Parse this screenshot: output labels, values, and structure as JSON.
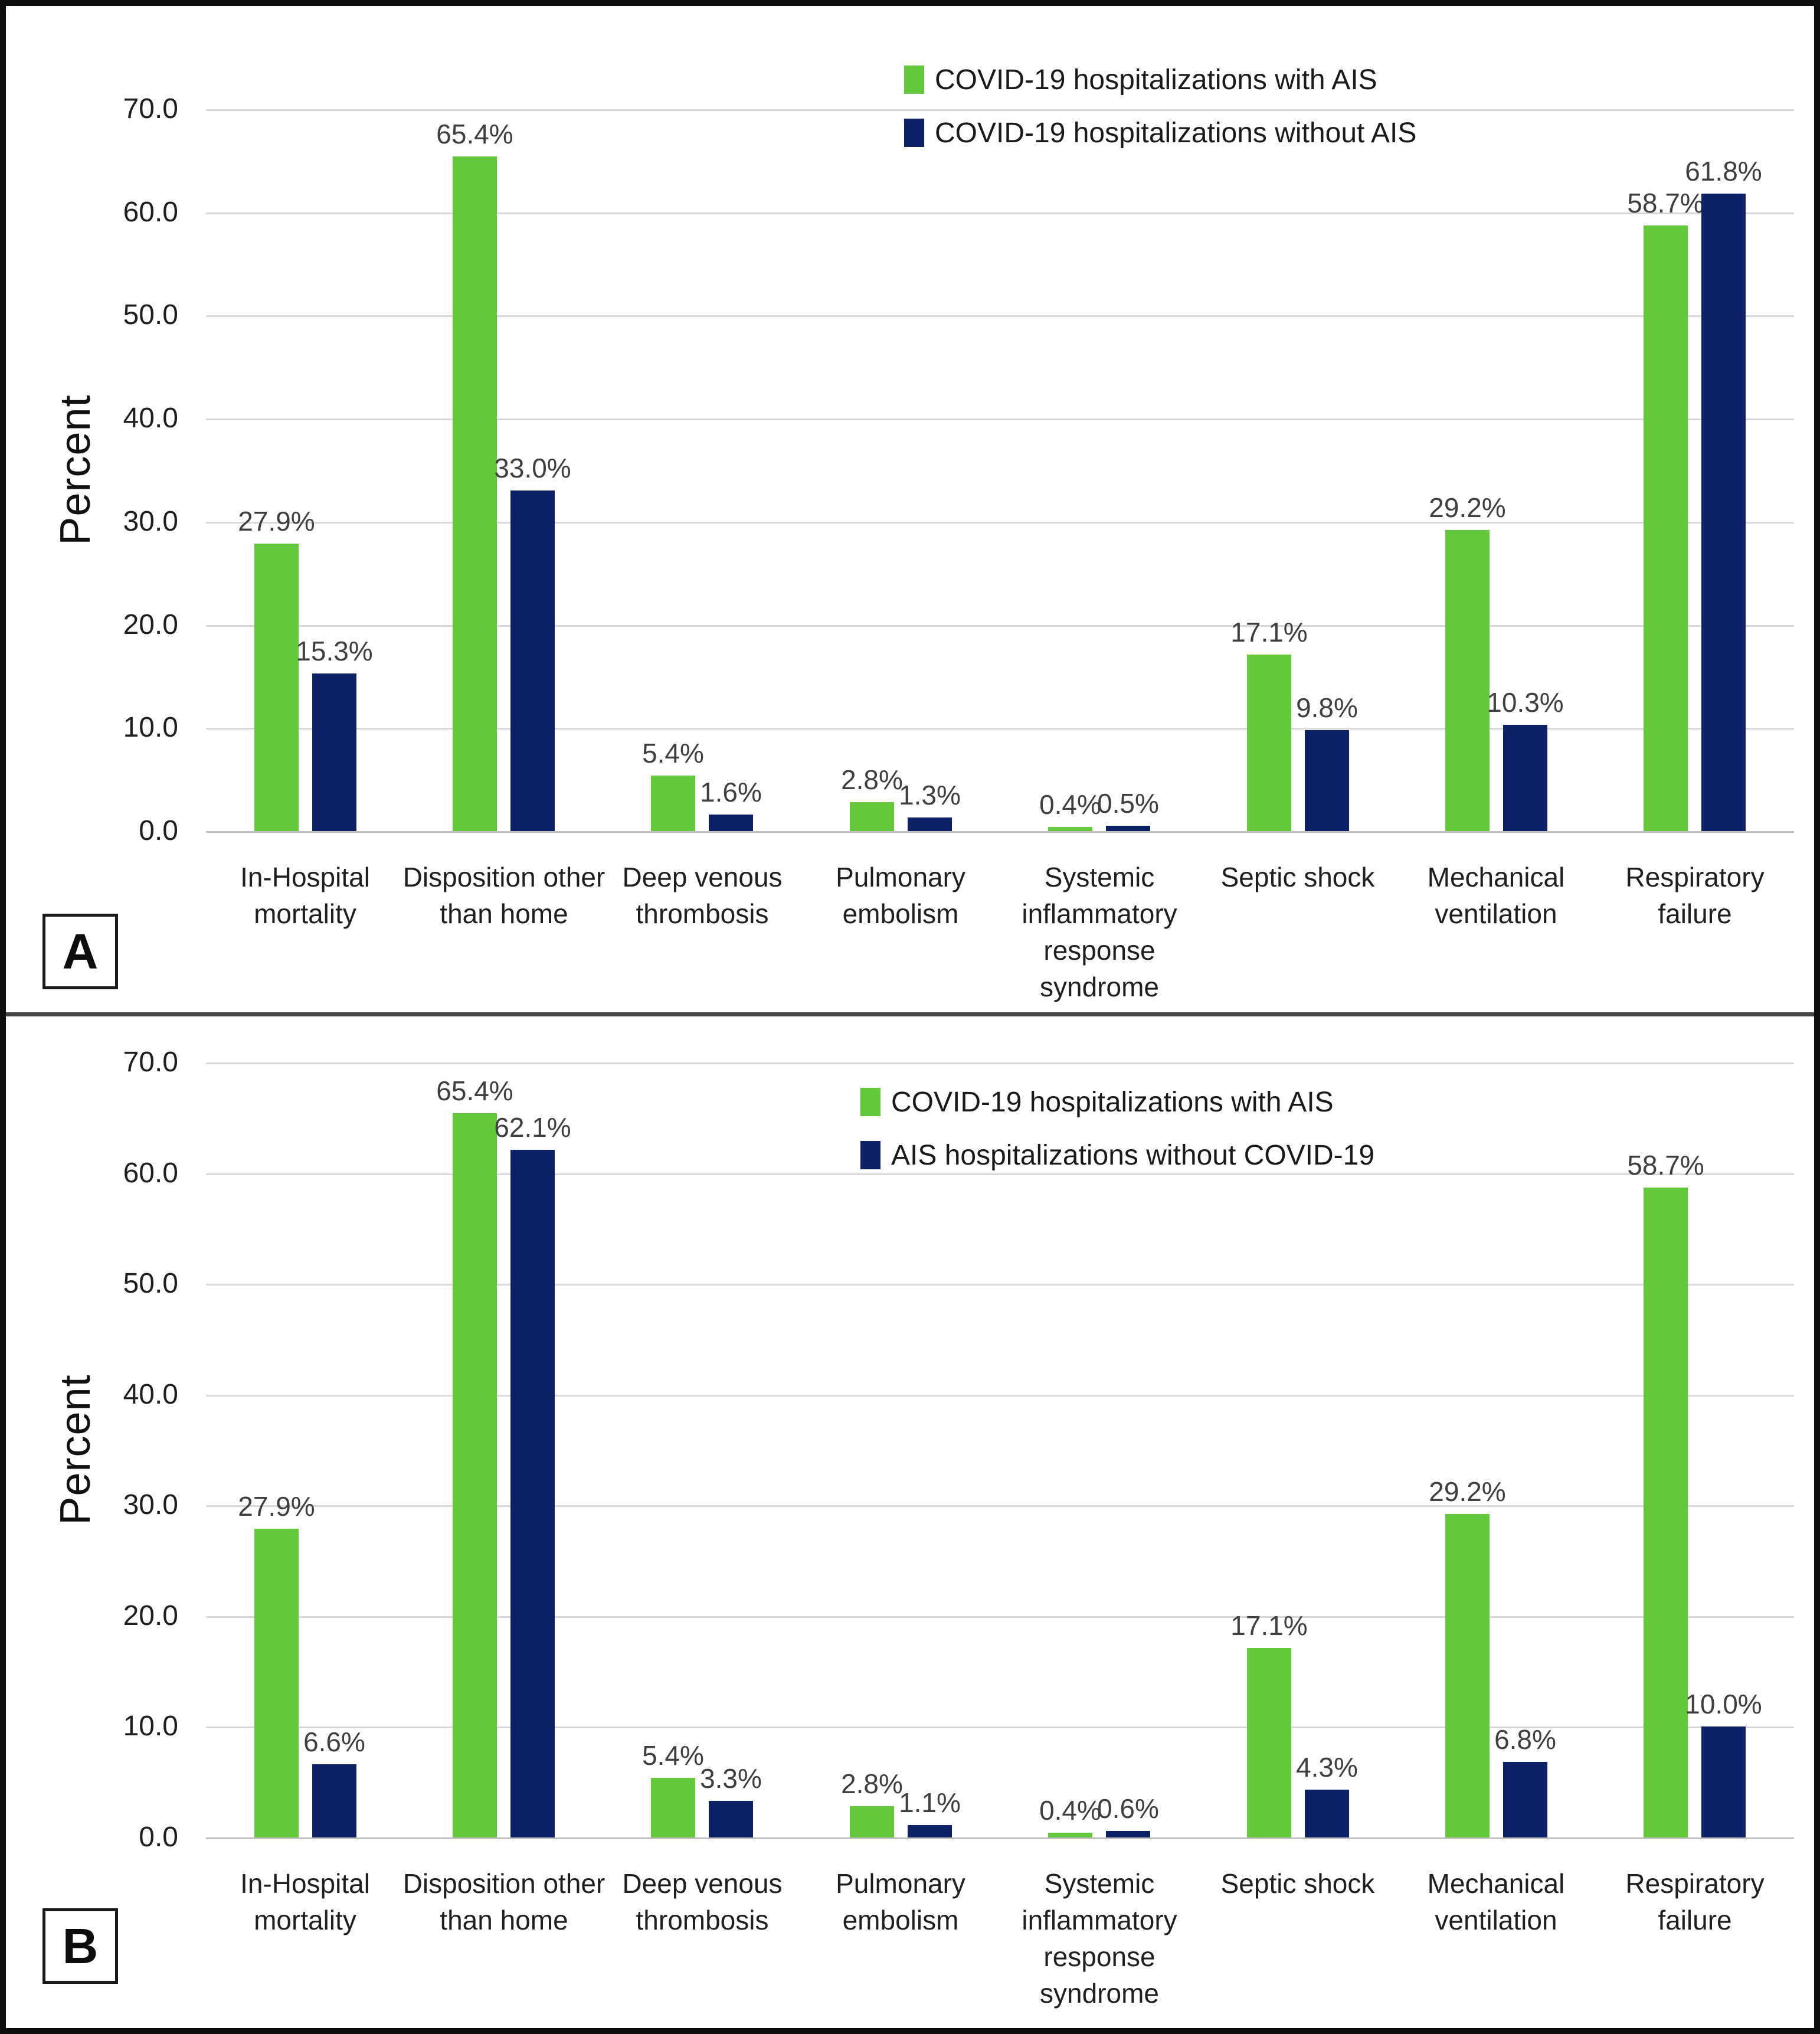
{
  "colors": {
    "green": "#64C83C",
    "navy": "#0E2166",
    "grid": "#D9D9D9",
    "axis": "#BFBFBF",
    "value_label": "#3F3F3F",
    "divider": "#454545",
    "border": "#0D0D0D"
  },
  "chart_data": [
    {
      "type": "bar",
      "panel_label": "A",
      "ylabel": "Percent",
      "ylim": [
        0,
        70
      ],
      "ytick_step": 10,
      "grid": true,
      "legend_position": "top-center",
      "categories": [
        "In-Hospital mortality",
        "Disposition other than home",
        "Deep venous thrombosis",
        "Pulmonary embolism",
        "Systemic inflammatory response syndrome",
        "Septic shock",
        "Mechanical ventilation",
        "Respiratory failure"
      ],
      "series": [
        {
          "name": "COVID-19 hospitalizations with AIS",
          "color_key": "green",
          "values": [
            27.9,
            65.4,
            5.4,
            2.8,
            0.4,
            17.1,
            29.2,
            58.7
          ]
        },
        {
          "name": "COVID-19 hospitalizations without AIS",
          "color_key": "navy",
          "values": [
            15.3,
            33.0,
            1.6,
            1.3,
            0.5,
            9.8,
            10.3,
            61.8
          ]
        }
      ]
    },
    {
      "type": "bar",
      "panel_label": "B",
      "ylabel": "Percent",
      "ylim": [
        0,
        70
      ],
      "ytick_step": 10,
      "grid": true,
      "legend_position": "top-center",
      "categories": [
        "In-Hospital mortality",
        "Disposition other than home",
        "Deep venous thrombosis",
        "Pulmonary embolism",
        "Systemic inflammatory response syndrome",
        "Septic shock",
        "Mechanical ventilation",
        "Respiratory failure"
      ],
      "series": [
        {
          "name": "COVID-19 hospitalizations with AIS",
          "color_key": "green",
          "values": [
            27.9,
            65.4,
            5.4,
            2.8,
            0.4,
            17.1,
            29.2,
            58.7
          ]
        },
        {
          "name": "AIS hospitalizations without COVID-19",
          "color_key": "navy",
          "values": [
            6.6,
            62.1,
            3.3,
            1.1,
            0.6,
            4.3,
            6.8,
            10.0
          ]
        }
      ]
    }
  ]
}
